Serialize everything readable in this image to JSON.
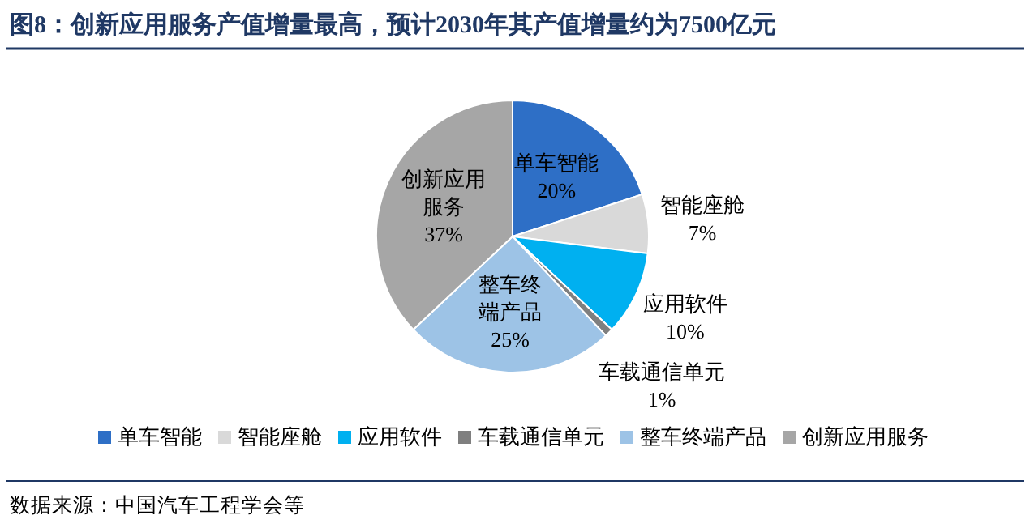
{
  "chart_data": {
    "type": "pie",
    "title": "图8：创新应用服务产值增量最高，预计2030年其产值增量约为7500亿元",
    "categories": [
      "单车智能",
      "智能座舱",
      "应用软件",
      "车载通信单元",
      "整车终端产品",
      "创新应用服务"
    ],
    "values": [
      20,
      7,
      10,
      1,
      25,
      37
    ],
    "colors": [
      "#2e6fc6",
      "#d9d9d9",
      "#00b0f0",
      "#7f7f7f",
      "#9dc3e6",
      "#a6a6a6"
    ],
    "value_labels": [
      "20%",
      "7%",
      "10%",
      "1%",
      "25%",
      "37%"
    ],
    "legend": "bottom",
    "annotations": [
      "数据来源：中国汽车工程学会等"
    ]
  }
}
